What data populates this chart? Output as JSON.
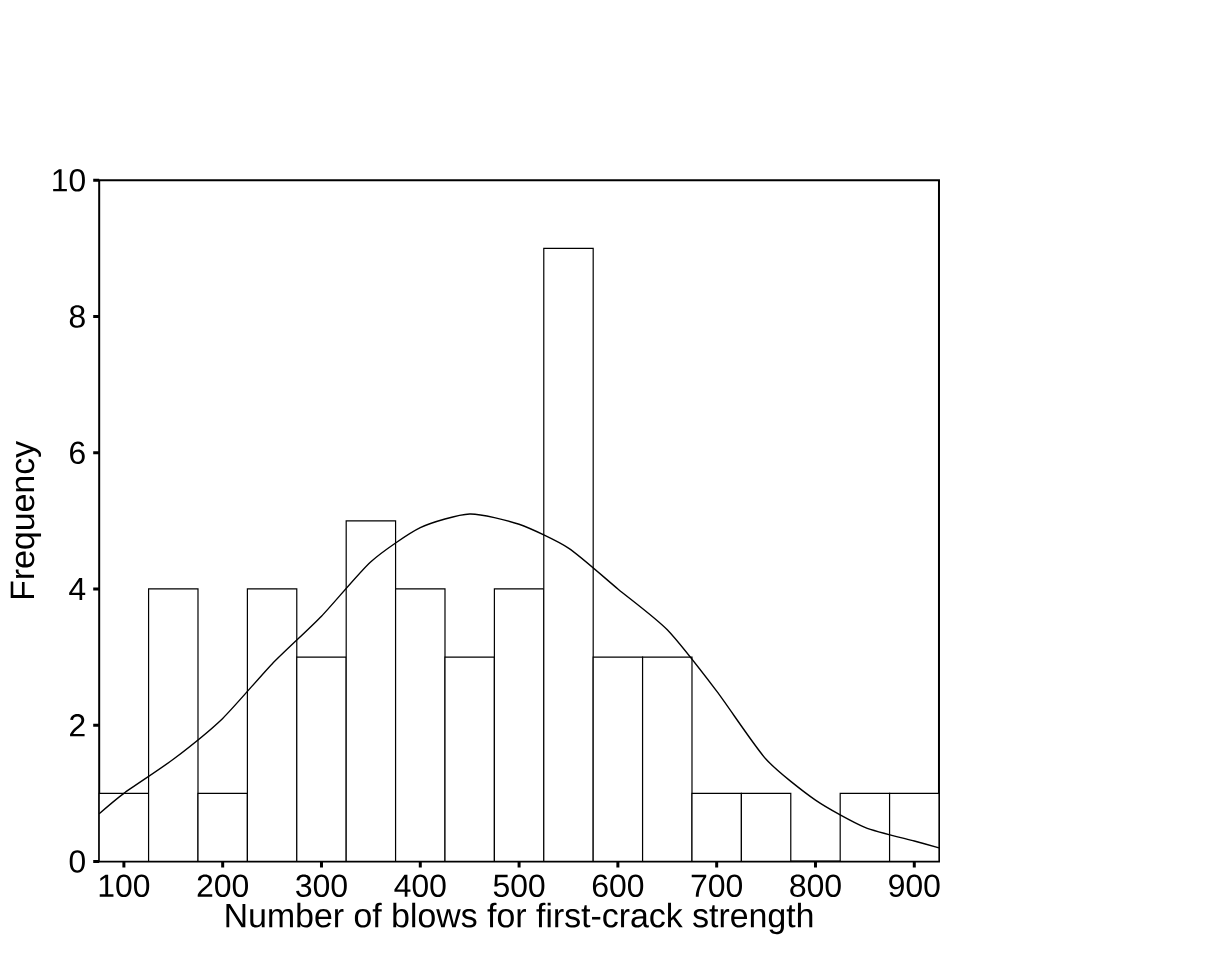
{
  "chart_data": {
    "type": "histogram",
    "xlabel": "Number of blows for first-crack strength",
    "ylabel": "Frequency",
    "bins": [
      75,
      125,
      175,
      225,
      275,
      325,
      375,
      425,
      475,
      525,
      575,
      625,
      675,
      725,
      775,
      825,
      875,
      925
    ],
    "values": [
      1,
      4,
      1,
      4,
      3,
      5,
      4,
      3,
      4,
      9,
      3,
      3,
      1,
      1,
      0,
      1,
      1
    ],
    "color": "#ffffff",
    "series": [
      {
        "type": "line",
        "color": "#000000",
        "x": [
          75,
          100,
          150,
          200,
          250,
          300,
          350,
          400,
          450,
          500,
          550,
          600,
          650,
          700,
          750,
          800,
          850,
          900,
          925
        ],
        "values": [
          0.7,
          1.0,
          1.5,
          2.1,
          2.9,
          3.6,
          4.4,
          4.9,
          5.1,
          4.95,
          4.6,
          4.0,
          3.4,
          2.5,
          1.5,
          0.9,
          0.5,
          0.3,
          0.2
        ]
      }
    ],
    "xlim": [
      75,
      925
    ],
    "ylim": [
      0,
      10
    ],
    "xticks": [
      100,
      200,
      300,
      400,
      500,
      600,
      700,
      800,
      900
    ],
    "yticks": [
      0,
      2,
      4,
      6,
      8,
      10
    ]
  }
}
